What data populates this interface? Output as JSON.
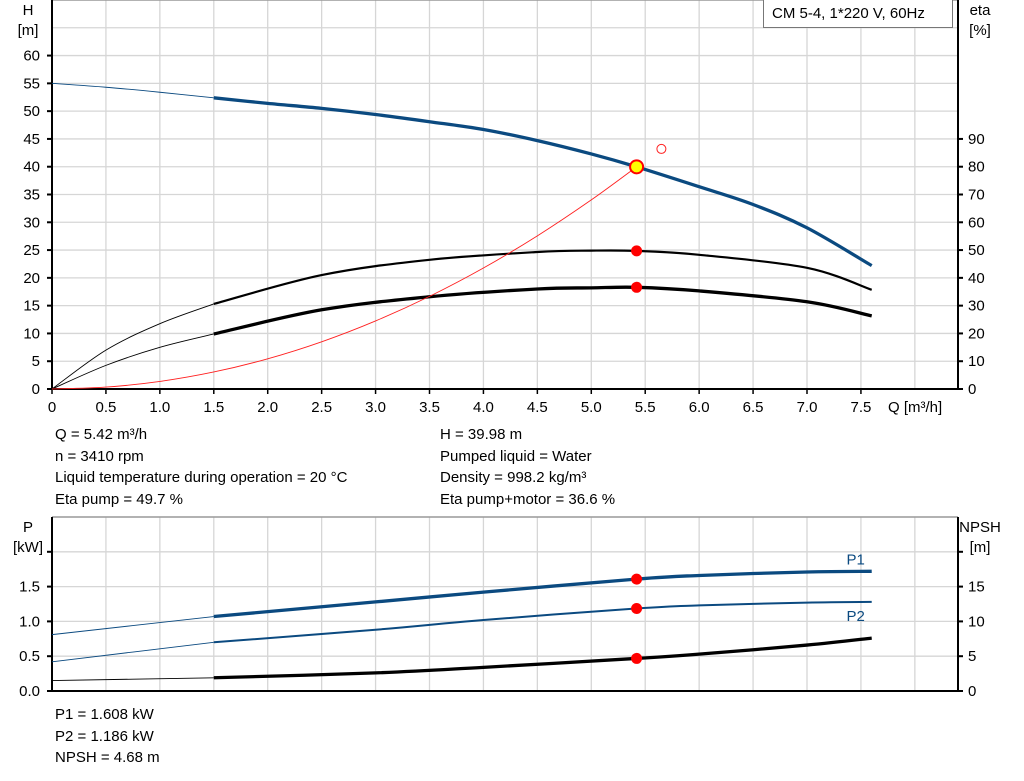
{
  "title_box": "CM 5-4, 1*220 V, 60Hz",
  "colors": {
    "head": "#0b4a80",
    "eta": "#000000",
    "system": "#ff2020",
    "power": "#0b4a80",
    "npsh": "#000000",
    "op_point": "#ff0000",
    "op_fill": "#ffff00",
    "grid": "#d6d6d6"
  },
  "chart_data": [
    {
      "type": "line",
      "xlabel": "Q [m³/h]",
      "ylabel": [
        "H",
        "[m]"
      ],
      "y2label": [
        "eta",
        "[%]"
      ],
      "xlim": [
        0,
        8.4
      ],
      "ylim": [
        0,
        70
      ],
      "y2lim": [
        0,
        140
      ],
      "xticks": [
        "0",
        "0.5",
        "1.0",
        "1.5",
        "2.0",
        "2.5",
        "3.0",
        "3.5",
        "4.0",
        "4.5",
        "5.0",
        "5.5",
        "6.0",
        "6.5",
        "7.0",
        "7.5"
      ],
      "yticks": [
        "0",
        "5",
        "10",
        "15",
        "20",
        "25",
        "30",
        "35",
        "40",
        "45",
        "50",
        "55",
        "60"
      ],
      "y2ticks": [
        "0",
        "10",
        "20",
        "30",
        "40",
        "50",
        "60",
        "70",
        "80",
        "90"
      ],
      "grid": true,
      "series": [
        {
          "axis": "H",
          "x": [
            0,
            0.5,
            1,
            1.5,
            2,
            2.5,
            3,
            3.5,
            4,
            4.5,
            5,
            5.42,
            6,
            6.5,
            7,
            7.6
          ],
          "y": [
            55,
            54.3,
            53.4,
            52.4,
            51.4,
            50.5,
            49.4,
            48.1,
            46.7,
            44.7,
            42.3,
            39.98,
            36.4,
            33.2,
            29,
            22.2
          ]
        },
        {
          "axis": "eta",
          "x": [
            0,
            0.5,
            1,
            1.5,
            2.5,
            3.5,
            4.5,
            5,
            5.42,
            6,
            7,
            7.6
          ],
          "y": [
            0,
            14,
            23.5,
            30.6,
            41,
            46.5,
            49.3,
            49.8,
            49.7,
            48.3,
            43.6,
            35.7
          ]
        },
        {
          "axis": "eta",
          "x": [
            0,
            0.5,
            1,
            1.5,
            2.5,
            3.5,
            4.5,
            5,
            5.42,
            6,
            7,
            7.6
          ],
          "y": [
            0,
            8.5,
            15,
            19.8,
            28.5,
            33.2,
            36,
            36.4,
            36.6,
            35.3,
            31.4,
            26.3
          ]
        },
        {
          "axis": "H",
          "kind": "system",
          "x": [
            0,
            0.5,
            1,
            1.5,
            2,
            2.5,
            3,
            3.5,
            4,
            4.5,
            5,
            5.42
          ],
          "y": [
            0,
            0.34,
            1.36,
            3.06,
            5.44,
            8.5,
            12.25,
            16.67,
            21.77,
            27.56,
            34.03,
            39.98
          ]
        }
      ],
      "operating_points": [
        {
          "axis": "H",
          "x": 5.42,
          "y": 39.98
        },
        {
          "axis": "eta",
          "x": 5.42,
          "y": 49.7
        },
        {
          "axis": "eta",
          "x": 5.42,
          "y": 36.6
        }
      ],
      "open_marker": {
        "axis": "H",
        "x": 5.65,
        "y": 43.2
      }
    },
    {
      "type": "line",
      "ylabel": [
        "P",
        "[kW]"
      ],
      "y2label": [
        "NPSH",
        "[m]"
      ],
      "xlim": [
        0,
        8.4
      ],
      "ylim": [
        0,
        2.5
      ],
      "y2lim": [
        0,
        25
      ],
      "yticks": [
        "0.0",
        "0.5",
        "1.0",
        "1.5"
      ],
      "y2ticks": [
        "0",
        "5",
        "10",
        "15"
      ],
      "grid": true,
      "series": [
        {
          "name": "P1",
          "axis": "P",
          "x": [
            0,
            1.5,
            3,
            4,
            5.42,
            6,
            7,
            7.6
          ],
          "y": [
            0.81,
            1.07,
            1.28,
            1.42,
            1.608,
            1.66,
            1.71,
            1.72
          ]
        },
        {
          "name": "P2",
          "axis": "P",
          "x": [
            0,
            1.5,
            3,
            4,
            5.42,
            6,
            7,
            7.6
          ],
          "y": [
            0.42,
            0.7,
            0.88,
            1.02,
            1.186,
            1.23,
            1.27,
            1.28
          ]
        },
        {
          "axis": "NPSH",
          "x": [
            0,
            1.5,
            3,
            4,
            5.42,
            6,
            7,
            7.6
          ],
          "y": [
            1.5,
            1.9,
            2.6,
            3.4,
            4.68,
            5.3,
            6.6,
            7.6
          ]
        }
      ],
      "operating_points": [
        {
          "axis": "P",
          "x": 5.42,
          "y": 1.608
        },
        {
          "axis": "P",
          "x": 5.42,
          "y": 1.186
        },
        {
          "axis": "NPSH",
          "x": 5.42,
          "y": 4.68
        }
      ]
    }
  ],
  "info_top_left": [
    "Q = 5.42 m³/h",
    "n = 3410 rpm",
    "Liquid temperature during operation = 20 °C",
    "Eta pump = 49.7 %"
  ],
  "info_top_right": [
    "H = 39.98 m",
    "Pumped liquid = Water",
    "Density = 998.2 kg/m³",
    "Eta pump+motor = 36.6 %"
  ],
  "info_bottom": [
    "P1 = 1.608 kW",
    "P2 = 1.186 kW",
    "NPSH = 4.68 m"
  ]
}
